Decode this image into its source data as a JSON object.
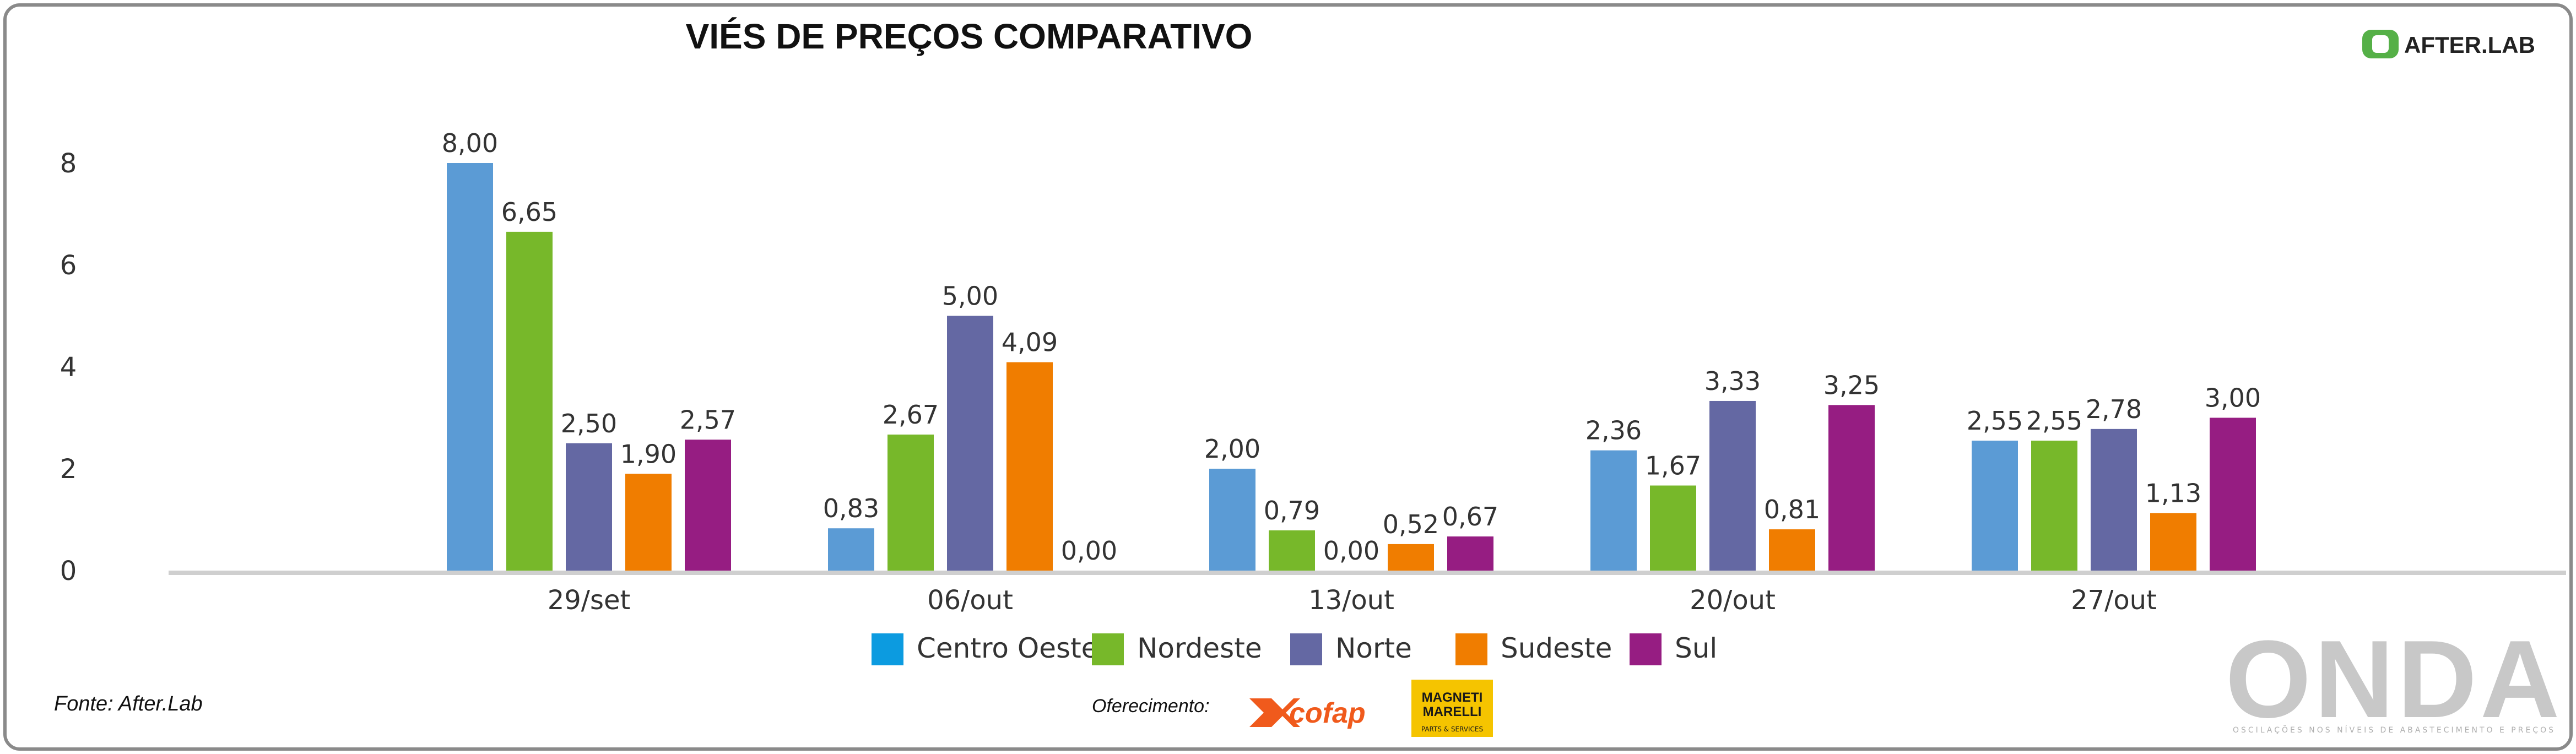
{
  "header": {
    "title": "VIÉS DE PREÇOS COMPARATIVO",
    "logo_text": "AFTER.LAB"
  },
  "footer": {
    "source": "Fonte: After.Lab",
    "sponsor_label": "Oferecimento:",
    "sponsor_1": "cofap",
    "sponsor_2_line1": "MAGNETI",
    "sponsor_2_line2": "MARELLI",
    "sponsor_2_line3": "PARTS & SERVICES",
    "watermark": "ONDA",
    "watermark_sub": "OSCILAÇÕES NOS NÍVEIS DE ABASTECIMENTO E PREÇOS"
  },
  "colors": {
    "Centro Oeste": "#5b9bd5",
    "Nordeste": "#77b82a",
    "Norte": "#6468a3",
    "Sudeste": "#f07d00",
    "Sul": "#961d82",
    "legend_centro_oeste": "#0c9be0",
    "axis": "#cfcfcf"
  },
  "chart_data": {
    "type": "bar",
    "title": "VIÉS DE PREÇOS COMPARATIVO",
    "categories": [
      "29/set",
      "06/out",
      "13/out",
      "20/out",
      "27/out"
    ],
    "yticks": [
      "0",
      "2",
      "4",
      "6",
      "8"
    ],
    "ylim": [
      0,
      8.5
    ],
    "legend_position": "bottom",
    "grid": false,
    "series": [
      {
        "name": "Centro Oeste",
        "values": [
          8.0,
          0.83,
          2.0,
          2.36,
          2.55
        ],
        "labels": [
          "8,00",
          "0,83",
          "2,00",
          "2,36",
          "2,55"
        ]
      },
      {
        "name": "Nordeste",
        "values": [
          6.65,
          2.67,
          0.79,
          1.67,
          2.55
        ],
        "labels": [
          "6,65",
          "2,67",
          "0,79",
          "1,67",
          "2,55"
        ]
      },
      {
        "name": "Norte",
        "values": [
          2.5,
          5.0,
          0.0,
          3.33,
          2.78
        ],
        "labels": [
          "2,50",
          "5,00",
          "0,00",
          "3,33",
          "2,78"
        ]
      },
      {
        "name": "Sudeste",
        "values": [
          1.9,
          4.09,
          0.52,
          0.81,
          1.13
        ],
        "labels": [
          "1,90",
          "4,09",
          "0,52",
          "0,81",
          "1,13"
        ]
      },
      {
        "name": "Sul",
        "values": [
          2.57,
          0.0,
          0.67,
          3.25,
          3.0
        ],
        "labels": [
          "2,57",
          "0,00",
          "0,67",
          "3,25",
          "3,00"
        ]
      }
    ]
  }
}
